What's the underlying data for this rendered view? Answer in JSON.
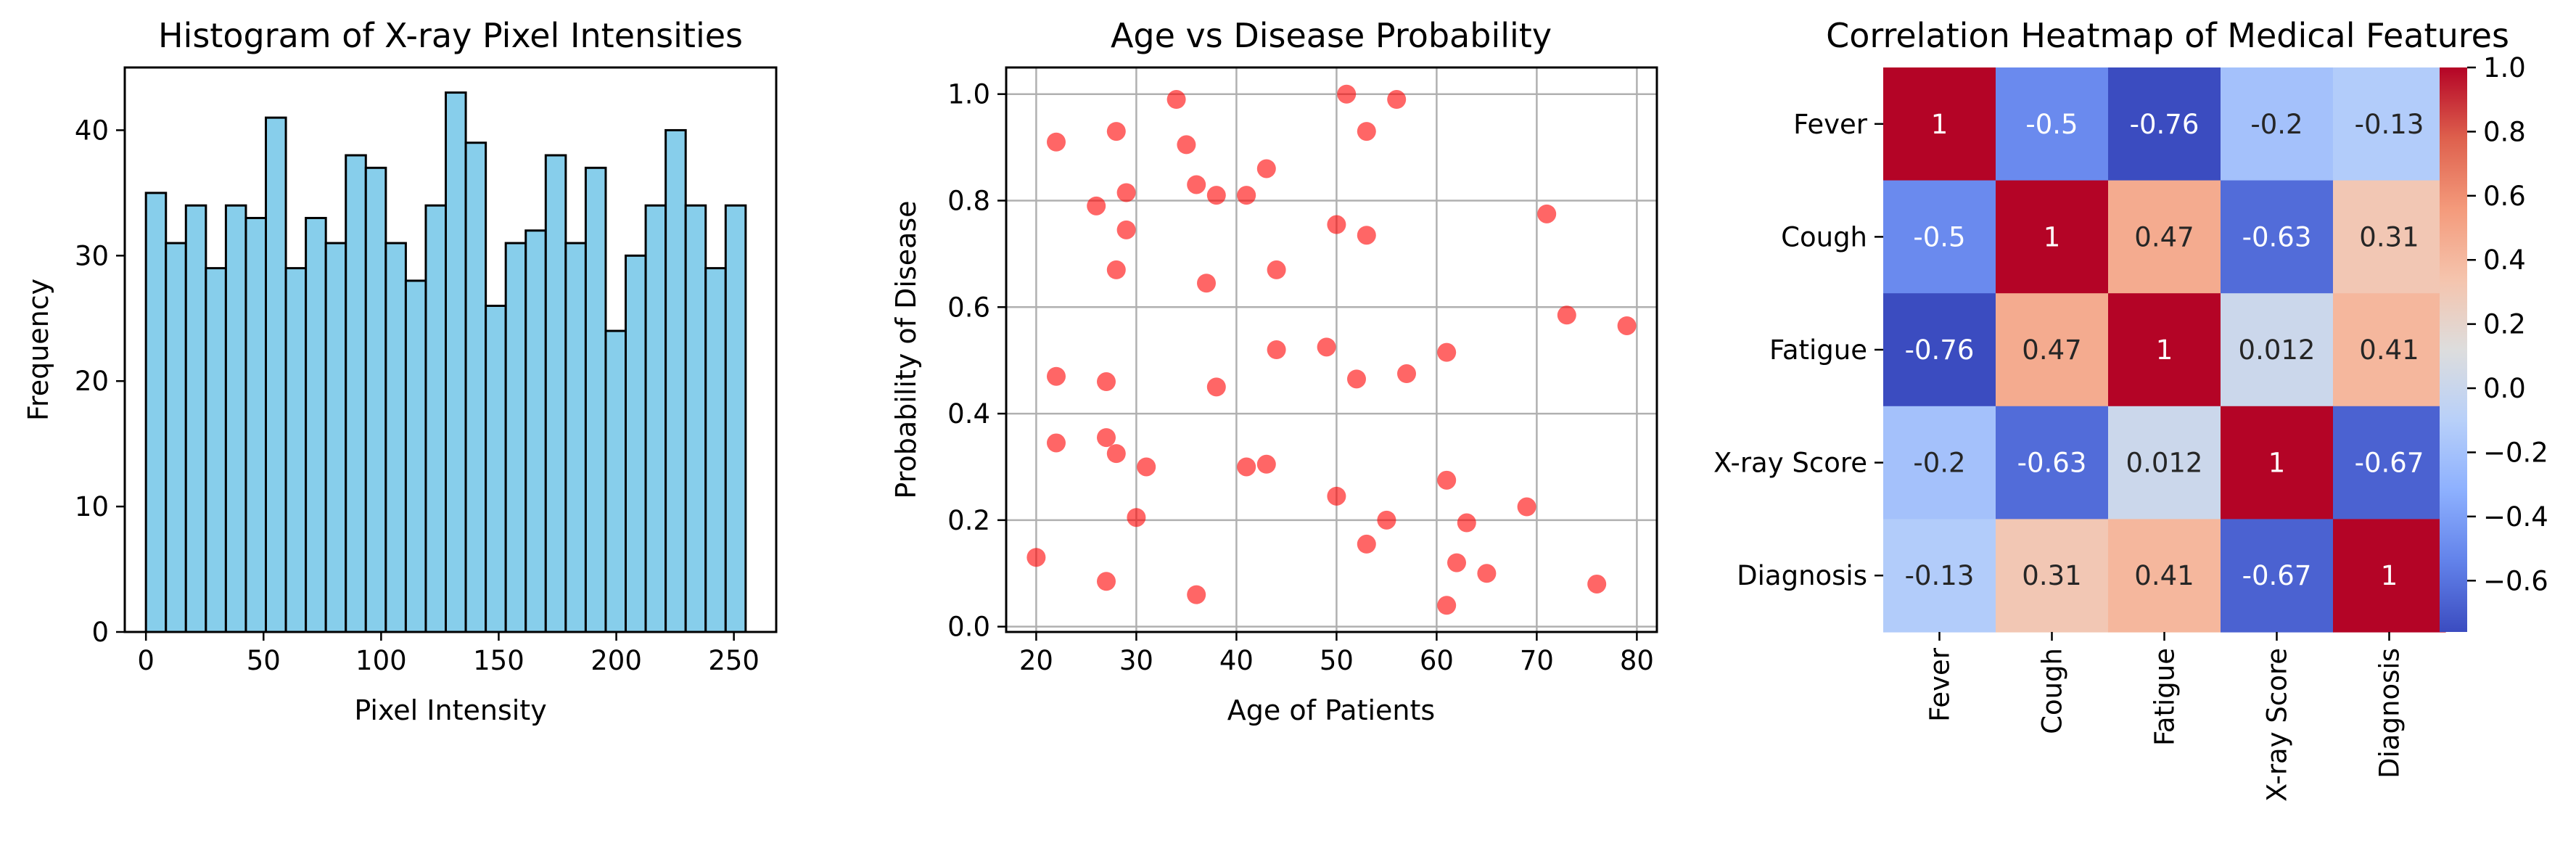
{
  "chart_data": [
    {
      "type": "bar",
      "title": "Histogram of X-ray Pixel Intensities",
      "xlabel": "Pixel Intensity",
      "ylabel": "Frequency",
      "bin_start": 0,
      "bin_width": 8.5,
      "values": [
        35,
        31,
        34,
        29,
        34,
        33,
        41,
        29,
        33,
        31,
        38,
        37,
        31,
        28,
        34,
        43,
        39,
        26,
        31,
        32,
        38,
        31,
        37,
        24,
        30,
        34,
        40,
        34,
        29,
        34
      ],
      "xlim": [
        -9,
        268
      ],
      "ylim": [
        0,
        45
      ],
      "xticks": [
        0,
        50,
        100,
        150,
        200,
        250
      ],
      "yticks": [
        0,
        10,
        20,
        30,
        40
      ],
      "bar_color": "#87ceeb",
      "edge_color": "#000000",
      "grid": false
    },
    {
      "type": "scatter",
      "title": "Age vs Disease Probability",
      "xlabel": "Age of Patients",
      "ylabel": "Probability of Disease",
      "points": [
        [
          20,
          0.13
        ],
        [
          22,
          0.91
        ],
        [
          22,
          0.47
        ],
        [
          22,
          0.345
        ],
        [
          26,
          0.79
        ],
        [
          27,
          0.46
        ],
        [
          27,
          0.355
        ],
        [
          27,
          0.085
        ],
        [
          28,
          0.93
        ],
        [
          28,
          0.67
        ],
        [
          28,
          0.325
        ],
        [
          29,
          0.815
        ],
        [
          29,
          0.745
        ],
        [
          30,
          0.205
        ],
        [
          31,
          0.3
        ],
        [
          34,
          0.99
        ],
        [
          35,
          0.905
        ],
        [
          36,
          0.83
        ],
        [
          36,
          0.06
        ],
        [
          37,
          0.645
        ],
        [
          38,
          0.81
        ],
        [
          38,
          0.45
        ],
        [
          41,
          0.81
        ],
        [
          41,
          0.3
        ],
        [
          43,
          0.86
        ],
        [
          43,
          0.305
        ],
        [
          44,
          0.67
        ],
        [
          44,
          0.52
        ],
        [
          49,
          0.525
        ],
        [
          50,
          0.755
        ],
        [
          50,
          0.245
        ],
        [
          51,
          1.0
        ],
        [
          52,
          0.465
        ],
        [
          53,
          0.93
        ],
        [
          53,
          0.735
        ],
        [
          53,
          0.155
        ],
        [
          55,
          0.2
        ],
        [
          56,
          0.99
        ],
        [
          57,
          0.475
        ],
        [
          61,
          0.515
        ],
        [
          61,
          0.275
        ],
        [
          61,
          0.04
        ],
        [
          62,
          0.12
        ],
        [
          63,
          0.195
        ],
        [
          65,
          0.1
        ],
        [
          69,
          0.225
        ],
        [
          71,
          0.775
        ],
        [
          73,
          0.585
        ],
        [
          76,
          0.08
        ],
        [
          79,
          0.565
        ]
      ],
      "xlim": [
        17,
        82
      ],
      "ylim": [
        -0.01,
        1.05
      ],
      "xticks": [
        20,
        30,
        40,
        50,
        60,
        70,
        80
      ],
      "yticks": [
        0.0,
        0.2,
        0.4,
        0.6,
        0.8,
        1.0
      ],
      "ytick_labels": [
        "0.0",
        "0.2",
        "0.4",
        "0.6",
        "0.8",
        "1.0"
      ],
      "point_color": "#ff0000",
      "point_alpha": 0.6,
      "grid": true
    },
    {
      "type": "heatmap",
      "title": "Correlation Heatmap of Medical Features",
      "labels": [
        "Fever",
        "Cough",
        "Fatigue",
        "X-ray Score",
        "Diagnosis"
      ],
      "matrix": [
        [
          1,
          -0.5,
          -0.76,
          -0.2,
          -0.13
        ],
        [
          -0.5,
          1,
          0.47,
          -0.63,
          0.31
        ],
        [
          -0.76,
          0.47,
          1,
          0.012,
          0.41
        ],
        [
          -0.2,
          -0.63,
          0.012,
          1,
          -0.67
        ],
        [
          -0.13,
          0.31,
          0.41,
          -0.67,
          1
        ]
      ],
      "annotations": [
        [
          "1",
          "-0.5",
          "-0.76",
          "-0.2",
          "-0.13"
        ],
        [
          "-0.5",
          "1",
          "0.47",
          "-0.63",
          "0.31"
        ],
        [
          "-0.76",
          "0.47",
          "1",
          "0.012",
          "0.41"
        ],
        [
          "-0.2",
          "-0.63",
          "0.012",
          "1",
          "-0.67"
        ],
        [
          "-0.13",
          "0.31",
          "0.41",
          "-0.67",
          "1"
        ]
      ],
      "colormap": "coolwarm",
      "vmin": -0.76,
      "vmax": 1.0,
      "colorbar_ticks": [
        1.0,
        0.8,
        0.6,
        0.4,
        0.2,
        0.0,
        -0.2,
        -0.4,
        -0.6
      ],
      "colorbar_tick_labels": [
        "1.0",
        "0.8",
        "0.6",
        "0.4",
        "0.2",
        "0.0",
        "−0.2",
        "−0.4",
        "−0.6"
      ]
    }
  ]
}
